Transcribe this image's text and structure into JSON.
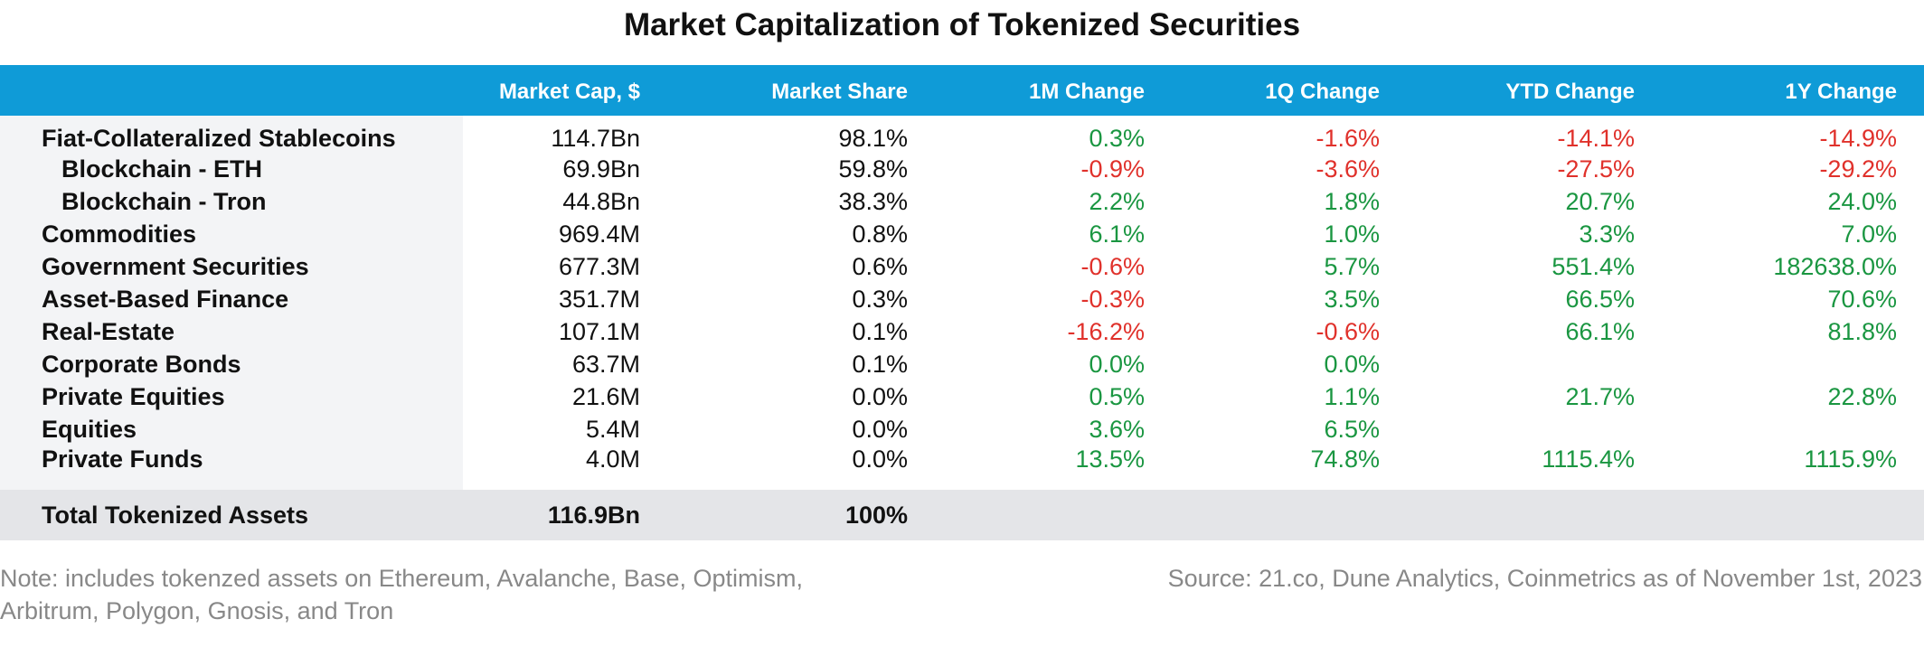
{
  "chart_data": {
    "type": "table",
    "title": "Market Capitalization of Tokenized Securities",
    "columns": [
      "",
      "Market Cap, $",
      "Market Share",
      "1M Change",
      "1Q Change",
      "YTD Change",
      "1Y Change"
    ],
    "rows": [
      {
        "category": "Fiat-Collateralized Stablecoins",
        "indent": false,
        "values": [
          "114.7Bn",
          "98.1%",
          "0.3%",
          "-1.6%",
          "-14.1%",
          "-14.9%"
        ]
      },
      {
        "category": "Blockchain - ETH",
        "indent": true,
        "values": [
          "69.9Bn",
          "59.8%",
          "-0.9%",
          "-3.6%",
          "-27.5%",
          "-29.2%"
        ]
      },
      {
        "category": "Blockchain - Tron",
        "indent": true,
        "values": [
          "44.8Bn",
          "38.3%",
          "2.2%",
          "1.8%",
          "20.7%",
          "24.0%"
        ]
      },
      {
        "category": "Commodities",
        "indent": false,
        "values": [
          "969.4M",
          "0.8%",
          "6.1%",
          "1.0%",
          "3.3%",
          "7.0%"
        ]
      },
      {
        "category": "Government Securities",
        "indent": false,
        "values": [
          "677.3M",
          "0.6%",
          "-0.6%",
          "5.7%",
          "551.4%",
          "182638.0%"
        ]
      },
      {
        "category": "Asset-Based Finance",
        "indent": false,
        "values": [
          "351.7M",
          "0.3%",
          "-0.3%",
          "3.5%",
          "66.5%",
          "70.6%"
        ]
      },
      {
        "category": "Real-Estate",
        "indent": false,
        "values": [
          "107.1M",
          "0.1%",
          "-16.2%",
          "-0.6%",
          "66.1%",
          "81.8%"
        ]
      },
      {
        "category": "Corporate Bonds",
        "indent": false,
        "values": [
          "63.7M",
          "0.1%",
          "0.0%",
          "0.0%",
          "",
          ""
        ]
      },
      {
        "category": "Private Equities",
        "indent": false,
        "values": [
          "21.6M",
          "0.0%",
          "0.5%",
          "1.1%",
          "21.7%",
          "22.8%"
        ]
      },
      {
        "category": "Equities",
        "indent": false,
        "values": [
          "5.4M",
          "0.0%",
          "3.6%",
          "6.5%",
          "",
          ""
        ]
      },
      {
        "category": "Private Funds",
        "indent": false,
        "values": [
          "4.0M",
          "0.0%",
          "13.5%",
          "74.8%",
          "1115.4%",
          "1115.9%"
        ]
      }
    ],
    "total": {
      "category": "Total Tokenized Assets",
      "values": [
        "116.9Bn",
        "100%",
        "",
        "",
        "",
        ""
      ]
    },
    "note": "Note: includes tokenzed assets on Ethereum, Avalanche, Base, Optimism, Arbitrum, Polygon, Gnosis, and Tron",
    "source": "Source: 21.co, Dune Analytics, Coinmetrics as of November 1st, 2023"
  },
  "colors": {
    "header_bg": "#0f9bd7",
    "positive": "#1a9641",
    "negative": "#e0312b",
    "category_bg": "#f3f4f6",
    "total_bg": "#e4e5e8",
    "footnote": "#888888"
  }
}
